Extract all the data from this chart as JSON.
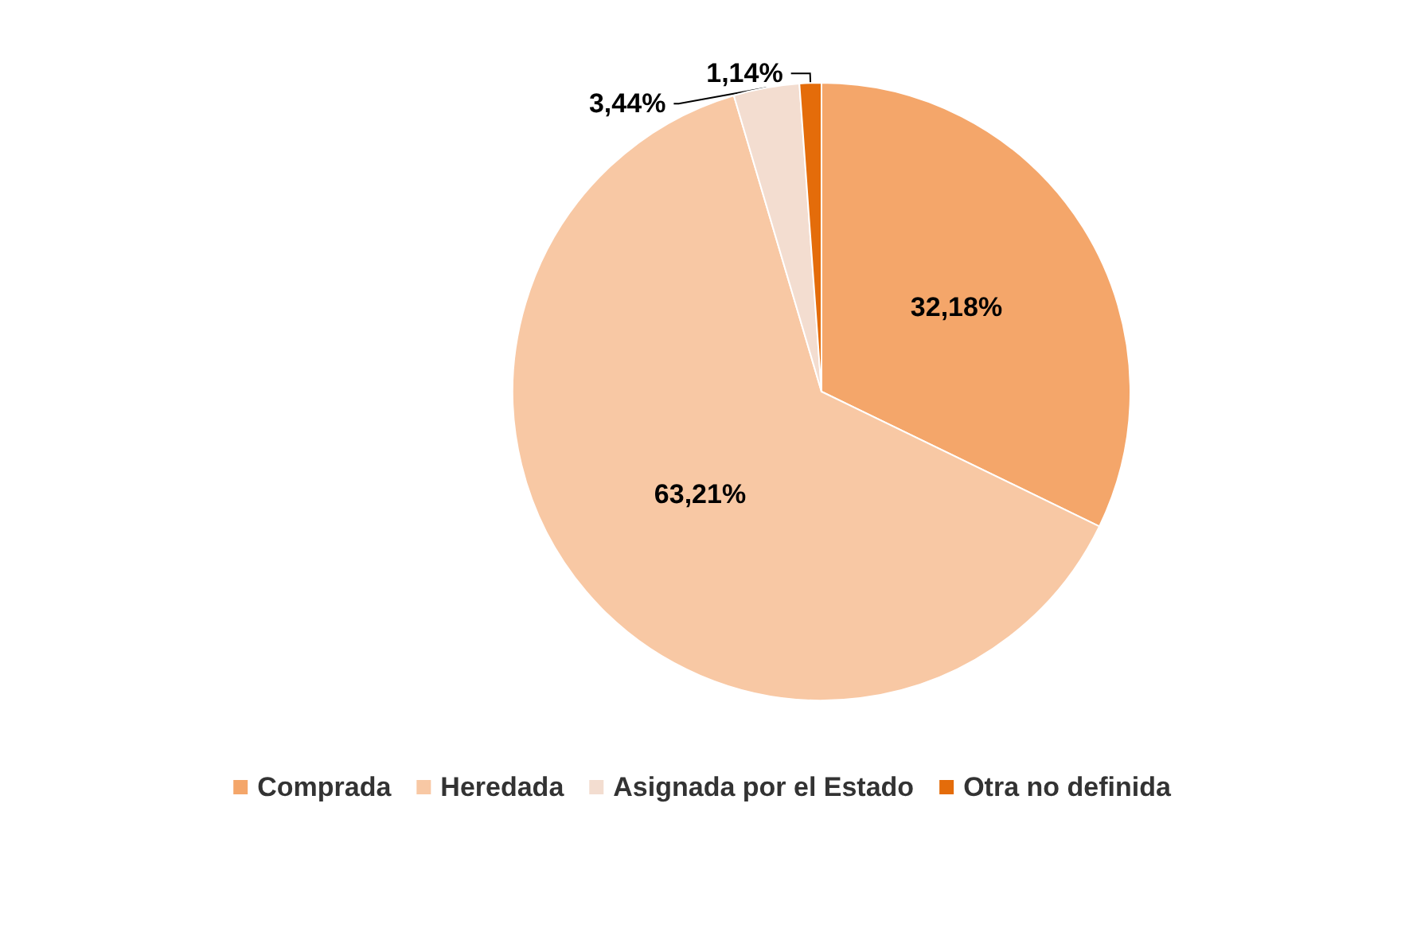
{
  "chart_data": {
    "type": "pie",
    "categories": [
      "Comprada",
      "Heredada",
      "Asignada por el Estado",
      "Otra no definida"
    ],
    "values": [
      32.18,
      63.21,
      3.44,
      1.14
    ],
    "colors": [
      "#f4a66a",
      "#f8c8a4",
      "#f3ddd0",
      "#e46c0a"
    ],
    "value_labels": [
      "32,18%",
      "63,21%",
      "3,44%",
      "1,14%"
    ],
    "legend": "bottom"
  }
}
